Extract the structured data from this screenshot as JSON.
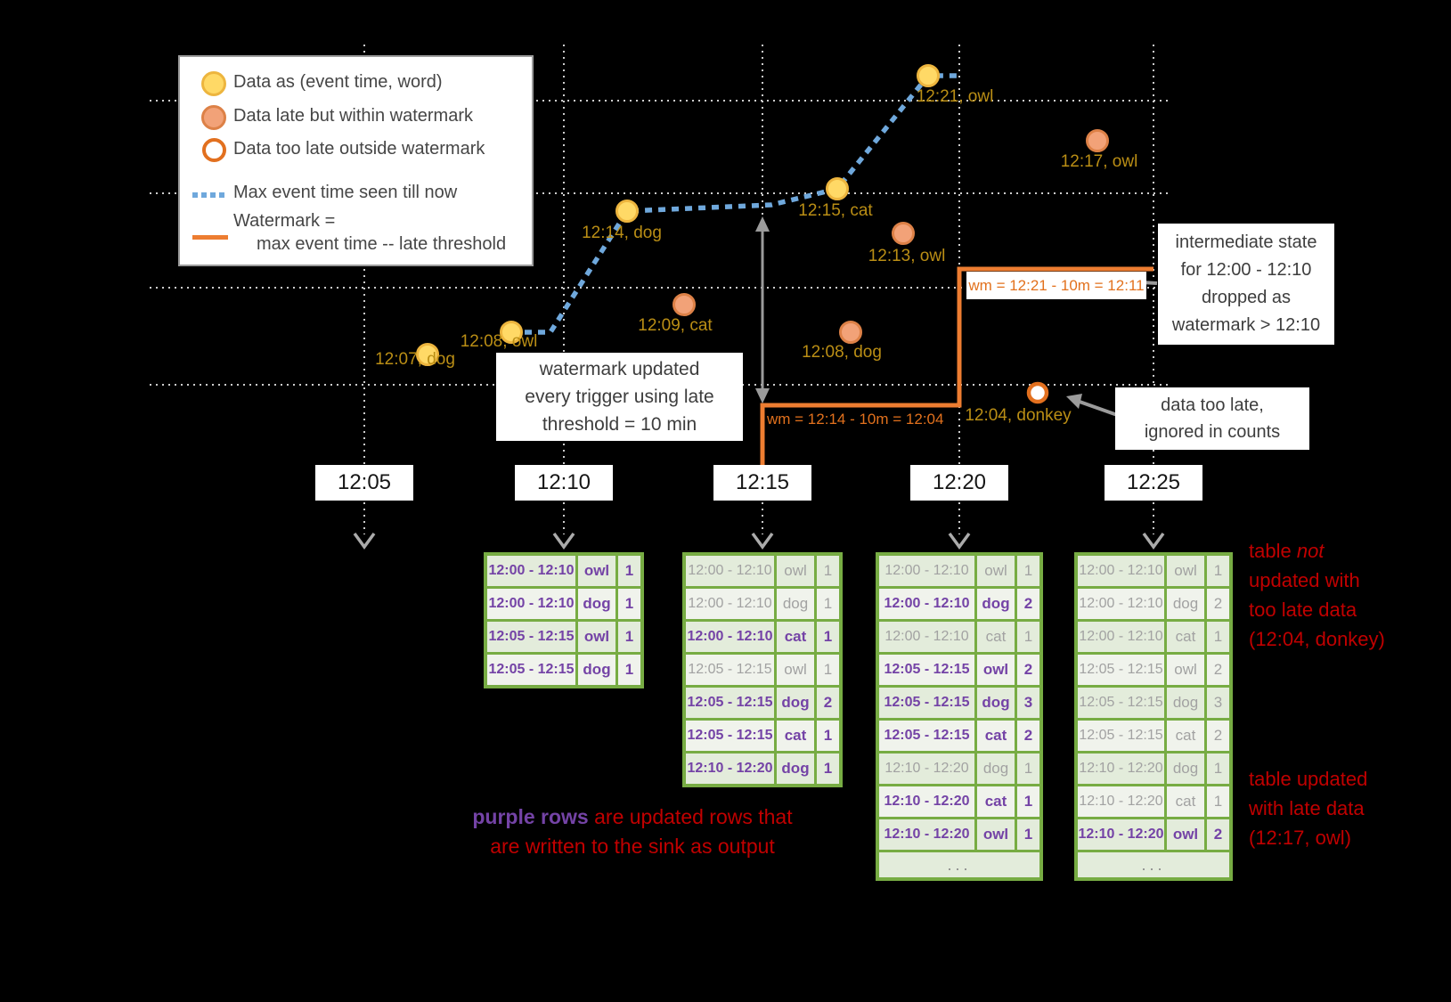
{
  "legend": {
    "items": [
      {
        "swatch": "yellow-dot",
        "label": "Data as (event time, word)"
      },
      {
        "swatch": "salmon-dot",
        "label": "Data late but within watermark"
      },
      {
        "swatch": "orange-ring",
        "label": "Data too late outside watermark"
      },
      {
        "swatch": "blue-dotted-line",
        "label": "Max event time seen till now"
      },
      {
        "swatch": "orange-line",
        "label": "Watermark =",
        "label2": "max event time -- late threshold"
      }
    ]
  },
  "axis": {
    "ticks": [
      "12:05",
      "12:10",
      "12:15",
      "12:20",
      "12:25"
    ]
  },
  "points": [
    {
      "label": "12:07, dog",
      "status": "ontime"
    },
    {
      "label": "12:08, owl",
      "status": "ontime"
    },
    {
      "label": "12:09, cat",
      "status": "late"
    },
    {
      "label": "12:08, dog",
      "status": "late"
    },
    {
      "label": "12:14, dog",
      "status": "ontime"
    },
    {
      "label": "12:15, cat",
      "status": "ontime"
    },
    {
      "label": "12:13, owl",
      "status": "late"
    },
    {
      "label": "12:21, owl",
      "status": "ontime"
    },
    {
      "label": "12:17, owl",
      "status": "late"
    },
    {
      "label": "12:04, donkey",
      "status": "toolate"
    }
  ],
  "watermark_labels": {
    "first": "wm = 12:14 - 10m = 12:04",
    "second": "wm = 12:21 - 10m = 12:11"
  },
  "annotations": {
    "trigger_note": {
      "l1": "watermark updated",
      "l2": "every trigger using late",
      "l3": "threshold = 10 min"
    },
    "intermediate_note": {
      "l1": "intermediate state",
      "l2": "for 12:00 - 12:10",
      "l3": "dropped as",
      "l4": "watermark > 12:10"
    },
    "too_late_note": {
      "l1": "data too late,",
      "l2": "ignored in counts"
    },
    "table_not_updated": {
      "l1a": "table ",
      "l1b": "not",
      "l2": "updated with",
      "l3": "too late data",
      "l4": "(12:04, donkey)"
    },
    "table_updated": {
      "l1": "table updated",
      "l2": "with late data",
      "l3": "(12:17, owl)"
    },
    "purple_note": {
      "highlight": "purple rows",
      "rest": " are updated rows that",
      "line2": "are written to the sink as output"
    }
  },
  "tables": [
    {
      "trigger": "12:10",
      "rows": [
        [
          "12:00 - 12:10",
          "owl",
          "1",
          true
        ],
        [
          "12:00 - 12:10",
          "dog",
          "1",
          true
        ],
        [
          "12:05 - 12:15",
          "owl",
          "1",
          true
        ],
        [
          "12:05 - 12:15",
          "dog",
          "1",
          true
        ]
      ],
      "ellipsis": false,
      "more": ""
    },
    {
      "trigger": "12:15",
      "rows": [
        [
          "12:00 - 12:10",
          "owl",
          "1",
          false
        ],
        [
          "12:00 - 12:10",
          "dog",
          "1",
          false
        ],
        [
          "12:00 - 12:10",
          "cat",
          "1",
          true
        ],
        [
          "12:05 - 12:15",
          "owl",
          "1",
          false
        ],
        [
          "12:05 - 12:15",
          "dog",
          "2",
          true
        ],
        [
          "12:05 - 12:15",
          "cat",
          "1",
          true
        ],
        [
          "12:10 - 12:20",
          "dog",
          "1",
          true
        ]
      ],
      "ellipsis": false,
      "more": ""
    },
    {
      "trigger": "12:20",
      "rows": [
        [
          "12:00 - 12:10",
          "owl",
          "1",
          false
        ],
        [
          "12:00 - 12:10",
          "dog",
          "2",
          true
        ],
        [
          "12:00 - 12:10",
          "cat",
          "1",
          false
        ],
        [
          "12:05 - 12:15",
          "owl",
          "2",
          true
        ],
        [
          "12:05 - 12:15",
          "dog",
          "3",
          true
        ],
        [
          "12:05 - 12:15",
          "cat",
          "2",
          true
        ],
        [
          "12:10 - 12:20",
          "dog",
          "1",
          false
        ],
        [
          "12:10 - 12:20",
          "cat",
          "1",
          true
        ],
        [
          "12:10 - 12:20",
          "owl",
          "1",
          true
        ]
      ],
      "ellipsis": true,
      "more": "..."
    },
    {
      "trigger": "12:25",
      "rows": [
        [
          "12:00 - 12:10",
          "owl",
          "1",
          false
        ],
        [
          "12:00 - 12:10",
          "dog",
          "2",
          false
        ],
        [
          "12:00 - 12:10",
          "cat",
          "1",
          false
        ],
        [
          "12:05 - 12:15",
          "owl",
          "2",
          false
        ],
        [
          "12:05 - 12:15",
          "dog",
          "3",
          false
        ],
        [
          "12:05 - 12:15",
          "cat",
          "2",
          false
        ],
        [
          "12:10 - 12:20",
          "dog",
          "1",
          false
        ],
        [
          "12:10 - 12:20",
          "cat",
          "1",
          false
        ],
        [
          "12:10 - 12:20",
          "owl",
          "2",
          true
        ]
      ],
      "ellipsis": true,
      "more": "..."
    }
  ],
  "colors": {
    "on_time": "#FFD966",
    "on_time_edge": "#EDB53E",
    "late": "#F2A278",
    "late_edge": "#DD8147",
    "too_late_fill": "#FFFFFF",
    "too_late_edge": "#E2701F",
    "max_event_line": "#6FA8DC",
    "watermark_line": "#ED7D31",
    "purple": "#7443A6",
    "red": "#C00000",
    "table_border": "#77AC43",
    "label_gold": "#BA8E15",
    "gridline": "#CDCDCD",
    "gray_arrow": "#9B9B9B"
  },
  "chart_data": {
    "type": "scatter",
    "title": "Watermarking in windowed grouped aggregation (event time vs processing time)",
    "x_ticks": [
      "12:05",
      "12:10",
      "12:15",
      "12:20",
      "12:25"
    ],
    "y_gridline_event_times": [
      "12:20",
      "12:15",
      "12:10",
      "12:05"
    ],
    "points": [
      {
        "event_time": "12:07",
        "word": "dog",
        "status": "on-time"
      },
      {
        "event_time": "12:08",
        "word": "owl",
        "status": "on-time"
      },
      {
        "event_time": "12:09",
        "word": "cat",
        "status": "late-within-watermark"
      },
      {
        "event_time": "12:08",
        "word": "dog",
        "status": "late-within-watermark"
      },
      {
        "event_time": "12:14",
        "word": "dog",
        "status": "on-time"
      },
      {
        "event_time": "12:15",
        "word": "cat",
        "status": "on-time"
      },
      {
        "event_time": "12:13",
        "word": "owl",
        "status": "late-within-watermark"
      },
      {
        "event_time": "12:21",
        "word": "owl",
        "status": "on-time"
      },
      {
        "event_time": "12:17",
        "word": "owl",
        "status": "late-within-watermark"
      },
      {
        "event_time": "12:04",
        "word": "donkey",
        "status": "too-late-outside-watermark"
      }
    ],
    "watermark_steps": [
      "wm = 12:14 - 10m = 12:04",
      "wm = 12:21 - 10m = 12:11"
    ]
  }
}
